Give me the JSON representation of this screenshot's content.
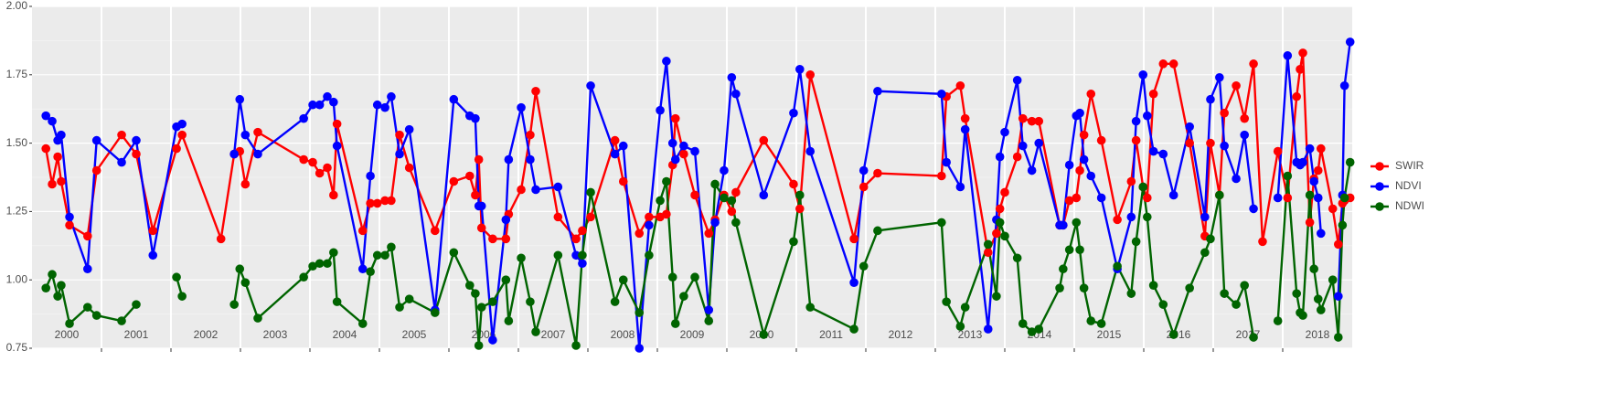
{
  "chart_data": {
    "type": "line",
    "x": [
      2000.2,
      2000.29,
      2000.37,
      2000.42,
      2000.54,
      2000.8,
      2000.93,
      2001.29,
      2001.5,
      2001.74,
      2002.08,
      2002.16,
      2002.72,
      2002.91,
      2002.99,
      2003.07,
      2003.25,
      2003.91,
      2004.04,
      2004.14,
      2004.25,
      2004.34,
      2004.39,
      2004.76,
      2004.87,
      2004.97,
      2005.08,
      2005.17,
      2005.29,
      2005.43,
      2005.8,
      2006.07,
      2006.3,
      2006.38,
      2006.43,
      2006.47,
      2006.63,
      2006.82,
      2006.86,
      2007.04,
      2007.17,
      2007.25,
      2007.57,
      2007.83,
      2007.92,
      2008.04,
      2008.39,
      2008.51,
      2008.74,
      2008.88,
      2009.04,
      2009.13,
      2009.22,
      2009.26,
      2009.38,
      2009.54,
      2009.74,
      2009.83,
      2009.96,
      2010.07,
      2010.13,
      2010.53,
      2010.96,
      2011.05,
      2011.2,
      2011.83,
      2011.97,
      2012.17,
      2013.09,
      2013.16,
      2013.36,
      2013.43,
      2013.76,
      2013.88,
      2013.93,
      2014.0,
      2014.18,
      2014.26,
      2014.39,
      2014.49,
      2014.79,
      2014.84,
      2014.93,
      2015.03,
      2015.08,
      2015.14,
      2015.24,
      2015.39,
      2015.62,
      2015.82,
      2015.89,
      2015.99,
      2016.05,
      2016.14,
      2016.28,
      2016.43,
      2016.66,
      2016.88,
      2016.96,
      2017.09,
      2017.16,
      2017.33,
      2017.45,
      2017.58,
      2017.71,
      2017.93,
      2018.07,
      2018.2,
      2018.25,
      2018.29,
      2018.39,
      2018.45,
      2018.51,
      2018.55,
      2018.72,
      2018.8,
      2018.86,
      2018.89,
      2018.97
    ],
    "series": [
      {
        "name": "SWIR",
        "color": "#ff0000",
        "values": [
          1.48,
          1.35,
          1.45,
          1.36,
          1.2,
          1.16,
          1.4,
          1.53,
          1.46,
          1.18,
          1.48,
          1.53,
          1.15,
          1.46,
          1.47,
          1.35,
          1.54,
          1.44,
          1.43,
          1.39,
          1.41,
          1.31,
          1.57,
          1.18,
          1.28,
          1.28,
          1.29,
          1.29,
          1.53,
          1.41,
          1.18,
          1.36,
          1.38,
          1.31,
          1.44,
          1.19,
          1.15,
          1.15,
          1.24,
          1.33,
          1.53,
          1.69,
          1.23,
          1.15,
          1.18,
          1.23,
          1.51,
          1.36,
          1.17,
          1.23,
          1.23,
          1.24,
          1.42,
          1.59,
          1.46,
          1.31,
          1.17,
          1.22,
          1.31,
          1.25,
          1.32,
          1.51,
          1.35,
          1.26,
          1.75,
          1.15,
          1.34,
          1.39,
          1.38,
          1.67,
          1.71,
          1.59,
          1.1,
          1.17,
          1.26,
          1.32,
          1.45,
          1.59,
          1.58,
          1.58,
          1.2,
          1.2,
          1.29,
          1.3,
          1.4,
          1.53,
          1.68,
          1.51,
          1.22,
          1.36,
          1.51,
          1.34,
          1.3,
          1.68,
          1.79,
          1.79,
          1.5,
          1.16,
          1.5,
          1.31,
          1.61,
          1.71,
          1.59,
          1.79,
          1.14,
          1.47,
          1.3,
          1.67,
          1.77,
          1.83,
          1.21,
          1.37,
          1.4,
          1.48,
          1.26,
          1.13,
          1.28,
          1.29,
          1.3
        ]
      },
      {
        "name": "NDVI",
        "color": "#0000ff",
        "values": [
          1.6,
          1.58,
          1.51,
          1.53,
          1.23,
          1.04,
          1.51,
          1.43,
          1.51,
          1.09,
          1.56,
          1.57,
          null,
          1.46,
          1.66,
          1.53,
          1.46,
          1.59,
          1.64,
          1.64,
          1.67,
          1.65,
          1.49,
          1.04,
          1.38,
          1.64,
          1.63,
          1.67,
          1.46,
          1.55,
          0.89,
          1.66,
          1.6,
          1.59,
          1.27,
          1.27,
          0.78,
          1.22,
          1.44,
          1.63,
          1.44,
          1.33,
          1.34,
          1.09,
          1.06,
          1.71,
          1.46,
          1.49,
          0.75,
          1.2,
          1.62,
          1.8,
          1.5,
          1.44,
          1.49,
          1.47,
          0.89,
          1.21,
          1.4,
          1.74,
          1.68,
          1.31,
          1.61,
          1.77,
          1.47,
          0.99,
          1.4,
          1.69,
          1.68,
          1.43,
          1.34,
          1.55,
          0.82,
          1.22,
          1.45,
          1.54,
          1.73,
          1.49,
          1.4,
          1.5,
          1.2,
          1.2,
          1.42,
          1.6,
          1.61,
          1.44,
          1.38,
          1.3,
          1.04,
          1.23,
          1.58,
          1.75,
          1.6,
          1.47,
          1.46,
          1.31,
          1.56,
          1.23,
          1.66,
          1.74,
          1.49,
          1.37,
          1.53,
          1.26,
          null,
          1.3,
          1.82,
          1.43,
          1.42,
          1.43,
          1.48,
          1.36,
          1.3,
          1.17,
          null,
          0.94,
          1.31,
          1.71,
          1.87
        ]
      },
      {
        "name": "NDWI",
        "color": "#006400",
        "values": [
          0.97,
          1.02,
          0.94,
          0.98,
          0.84,
          0.9,
          0.87,
          0.85,
          0.91,
          null,
          1.01,
          0.94,
          null,
          0.91,
          1.04,
          0.99,
          0.86,
          1.01,
          1.05,
          1.06,
          1.06,
          1.1,
          0.92,
          0.84,
          1.03,
          1.09,
          1.09,
          1.12,
          0.9,
          0.93,
          0.88,
          1.1,
          0.98,
          0.95,
          0.76,
          0.9,
          0.92,
          1.0,
          0.85,
          1.08,
          0.92,
          0.81,
          1.09,
          0.76,
          1.09,
          1.32,
          0.92,
          1.0,
          0.88,
          1.09,
          1.29,
          1.36,
          1.01,
          0.84,
          0.94,
          1.01,
          0.85,
          1.35,
          1.3,
          1.29,
          1.21,
          0.8,
          1.14,
          1.31,
          0.9,
          0.82,
          1.05,
          1.18,
          1.21,
          0.92,
          0.83,
          0.9,
          1.13,
          0.94,
          1.21,
          1.16,
          1.08,
          0.84,
          0.81,
          0.82,
          0.97,
          1.04,
          1.11,
          1.21,
          1.11,
          0.97,
          0.85,
          0.84,
          1.05,
          0.95,
          1.14,
          1.34,
          1.23,
          0.98,
          0.91,
          0.8,
          0.97,
          1.1,
          1.15,
          1.31,
          0.95,
          0.91,
          0.98,
          0.79,
          null,
          0.85,
          1.38,
          0.95,
          0.88,
          0.87,
          1.31,
          1.04,
          0.93,
          0.89,
          1.0,
          0.79,
          1.2,
          1.3,
          1.43
        ]
      }
    ],
    "xlim": [
      2000,
      2019
    ],
    "xticks": [
      {
        "value": 2000.5,
        "label": "2000"
      },
      {
        "value": 2001.5,
        "label": "2001"
      },
      {
        "value": 2002.5,
        "label": "2002"
      },
      {
        "value": 2003.5,
        "label": "2003"
      },
      {
        "value": 2004.5,
        "label": "2004"
      },
      {
        "value": 2005.5,
        "label": "2005"
      },
      {
        "value": 2006.5,
        "label": "2006"
      },
      {
        "value": 2007.5,
        "label": "2007"
      },
      {
        "value": 2008.5,
        "label": "2008"
      },
      {
        "value": 2009.5,
        "label": "2009"
      },
      {
        "value": 2010.5,
        "label": "2010"
      },
      {
        "value": 2011.5,
        "label": "2011"
      },
      {
        "value": 2012.5,
        "label": "2012"
      },
      {
        "value": 2013.5,
        "label": "2013"
      },
      {
        "value": 2014.5,
        "label": "2014"
      },
      {
        "value": 2015.5,
        "label": "2015"
      },
      {
        "value": 2016.5,
        "label": "2016"
      },
      {
        "value": 2017.5,
        "label": "2017"
      },
      {
        "value": 2018.5,
        "label": "2018"
      }
    ],
    "xgrid": [
      2001,
      2002,
      2003,
      2004,
      2005,
      2006,
      2007,
      2008,
      2009,
      2010,
      2011,
      2012,
      2013,
      2014,
      2015,
      2016,
      2017,
      2018
    ],
    "ylim": [
      0.75,
      2.0
    ],
    "yticks": [
      {
        "value": 0.75,
        "label": "0.75"
      },
      {
        "value": 1.0,
        "label": "1.00"
      },
      {
        "value": 1.25,
        "label": "1.25"
      },
      {
        "value": 1.5,
        "label": "1.50"
      },
      {
        "value": 1.75,
        "label": "1.75"
      },
      {
        "value": 2.0,
        "label": "2.00"
      }
    ],
    "grid": true,
    "legend": "right"
  }
}
